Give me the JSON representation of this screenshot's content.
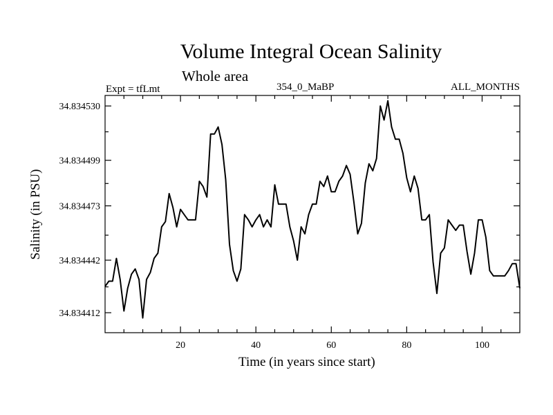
{
  "chart_data": {
    "type": "line",
    "title": "Volume Integral Ocean Salinity",
    "subtitle": "Whole area",
    "expt_label": "Expt = tfLmt",
    "period_label": "354_0_MaBP",
    "months_label": "ALL_MONTHS",
    "xlabel": "Time (in years since start)",
    "ylabel": "Salinity (in PSU)",
    "xlim": [
      0,
      110
    ],
    "ylim": [
      34.8344006,
      34.834536
    ],
    "xticks": [
      20,
      40,
      60,
      80,
      100
    ],
    "yticks": [
      34.834412,
      34.834442,
      34.834473,
      34.834499,
      34.83453
    ],
    "ytick_labels": [
      "34.834412",
      "34.834442",
      "34.834473",
      "34.834499",
      "34.834530"
    ],
    "grid": false,
    "series": [
      {
        "name": "salinity",
        "x": [
          0,
          1,
          2,
          3,
          4,
          5,
          6,
          7,
          8,
          9,
          10,
          11,
          12,
          13,
          14,
          15,
          16,
          17,
          18,
          19,
          20,
          21,
          22,
          23,
          24,
          25,
          26,
          27,
          28,
          29,
          30,
          31,
          32,
          33,
          34,
          35,
          36,
          37,
          38,
          39,
          40,
          41,
          42,
          43,
          44,
          45,
          46,
          47,
          48,
          49,
          50,
          51,
          52,
          53,
          54,
          55,
          56,
          57,
          58,
          59,
          60,
          61,
          62,
          63,
          64,
          65,
          66,
          67,
          68,
          69,
          70,
          71,
          72,
          73,
          74,
          75,
          76,
          77,
          78,
          79,
          80,
          81,
          82,
          83,
          84,
          85,
          86,
          87,
          88,
          89,
          90,
          91,
          92,
          93,
          94,
          95,
          96,
          97,
          98,
          99,
          100,
          101,
          102,
          103,
          104,
          105,
          106,
          107,
          108,
          109,
          110
        ],
        "values": [
          34.834427,
          34.83443,
          34.83443,
          34.834443,
          34.834431,
          34.834413,
          34.834426,
          34.834434,
          34.834437,
          34.834431,
          34.834409,
          34.834431,
          34.834435,
          34.834443,
          34.834446,
          34.834461,
          34.834464,
          34.83448,
          34.834472,
          34.834461,
          34.834471,
          34.834468,
          34.834465,
          34.834465,
          34.834465,
          34.834487,
          34.834484,
          34.834478,
          34.834514,
          34.834514,
          34.834518,
          34.834508,
          34.834488,
          34.834451,
          34.834436,
          34.83443,
          34.834437,
          34.834468,
          34.834465,
          34.834461,
          34.834465,
          34.834468,
          34.834461,
          34.834465,
          34.834461,
          34.834485,
          34.834474,
          34.834474,
          34.834474,
          34.834461,
          34.834453,
          34.834442,
          34.834461,
          34.834457,
          34.834468,
          34.834474,
          34.834474,
          34.834487,
          34.834484,
          34.83449,
          34.834481,
          34.834481,
          34.834487,
          34.83449,
          34.834496,
          34.834491,
          34.834475,
          34.834457,
          34.834463,
          34.834486,
          34.834497,
          34.834493,
          34.8345,
          34.83453,
          34.834522,
          34.834533,
          34.834518,
          34.834511,
          34.834511,
          34.834503,
          34.834489,
          34.834481,
          34.83449,
          34.834483,
          34.834465,
          34.834465,
          34.834468,
          34.834441,
          34.834423,
          34.834446,
          34.834449,
          34.834465,
          34.834462,
          34.834459,
          34.834462,
          34.834462,
          34.834447,
          34.834434,
          34.834446,
          34.834465,
          34.834465,
          34.834455,
          34.834436,
          34.834433,
          34.834433,
          34.834433,
          34.834433,
          34.834436,
          34.83444,
          34.83444,
          34.834426
        ]
      }
    ]
  }
}
